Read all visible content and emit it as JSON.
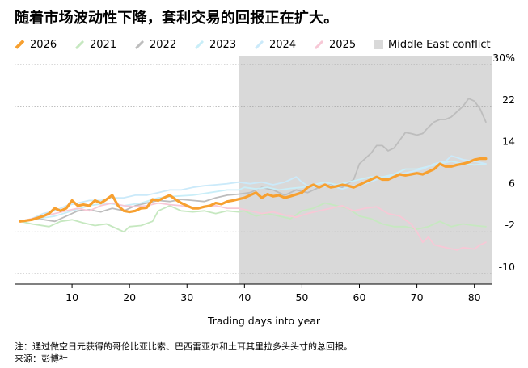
{
  "title": "随着市场波动性下降，套利交易的回报正在扩大。",
  "chart_data": {
    "type": "line",
    "xlabel": "Trading days into year",
    "x_ticks": [
      10,
      20,
      30,
      40,
      50,
      60,
      70,
      80
    ],
    "y_ticks": [
      30,
      22,
      14,
      6,
      -2,
      -10
    ],
    "y_tick_labels": [
      "30%",
      "22",
      "14",
      "6",
      "-2",
      "-10"
    ],
    "xlim": [
      0,
      83
    ],
    "ylim": [
      -12,
      30
    ],
    "grid": true,
    "legend_position": "top",
    "shaded_region": {
      "label": "Middle East conflict",
      "x_start": 39,
      "x_end": 83,
      "color": "#d9d9d9"
    },
    "series": [
      {
        "name": "2026",
        "color": "#f7a030",
        "highlight": true,
        "points": [
          [
            1,
            0
          ],
          [
            3,
            0.3
          ],
          [
            5,
            1
          ],
          [
            6,
            1.5
          ],
          [
            7,
            2.5
          ],
          [
            8,
            2
          ],
          [
            9,
            2.5
          ],
          [
            10,
            4
          ],
          [
            11,
            3
          ],
          [
            12,
            3.2
          ],
          [
            13,
            3
          ],
          [
            14,
            4
          ],
          [
            15,
            3.5
          ],
          [
            16,
            4.2
          ],
          [
            17,
            5
          ],
          [
            18,
            3
          ],
          [
            19,
            2
          ],
          [
            20,
            1.8
          ],
          [
            21,
            2
          ],
          [
            22,
            2.5
          ],
          [
            23,
            2.6
          ],
          [
            24,
            4.2
          ],
          [
            25,
            4
          ],
          [
            26,
            4.5
          ],
          [
            27,
            5
          ],
          [
            28,
            4.2
          ],
          [
            29,
            3.5
          ],
          [
            30,
            3
          ],
          [
            31,
            2.5
          ],
          [
            32,
            2.5
          ],
          [
            33,
            2.8
          ],
          [
            34,
            3
          ],
          [
            35,
            3.5
          ],
          [
            36,
            3.3
          ],
          [
            37,
            3.8
          ],
          [
            38,
            4
          ],
          [
            40,
            4.5
          ],
          [
            42,
            5.5
          ],
          [
            43,
            4.5
          ],
          [
            44,
            5.2
          ],
          [
            45,
            4.8
          ],
          [
            46,
            5
          ],
          [
            47,
            4.5
          ],
          [
            48,
            4.8
          ],
          [
            50,
            5.5
          ],
          [
            51,
            6.5
          ],
          [
            52,
            7
          ],
          [
            53,
            6.5
          ],
          [
            54,
            7
          ],
          [
            55,
            6.5
          ],
          [
            56,
            6.7
          ],
          [
            57,
            7
          ],
          [
            58,
            6.8
          ],
          [
            59,
            6.5
          ],
          [
            60,
            7
          ],
          [
            61,
            7.5
          ],
          [
            62,
            8
          ],
          [
            63,
            8.5
          ],
          [
            64,
            8
          ],
          [
            65,
            8
          ],
          [
            66,
            8.5
          ],
          [
            67,
            9
          ],
          [
            68,
            8.8
          ],
          [
            69,
            9
          ],
          [
            70,
            9.2
          ],
          [
            71,
            9
          ],
          [
            72,
            9.5
          ],
          [
            73,
            10
          ],
          [
            74,
            11
          ],
          [
            75,
            10.5
          ],
          [
            76,
            10.5
          ],
          [
            77,
            10.8
          ],
          [
            78,
            11
          ],
          [
            79,
            11.3
          ],
          [
            80,
            11.8
          ],
          [
            81,
            12
          ],
          [
            82,
            12
          ]
        ]
      },
      {
        "name": "2021",
        "color": "#c6e8c0",
        "highlight": false,
        "points": [
          [
            1,
            0
          ],
          [
            3,
            -0.5
          ],
          [
            6,
            -1
          ],
          [
            8,
            0
          ],
          [
            10,
            0.3
          ],
          [
            12,
            -0.3
          ],
          [
            14,
            -0.8
          ],
          [
            16,
            -0.5
          ],
          [
            18,
            -1.5
          ],
          [
            19,
            -2
          ],
          [
            20,
            -1
          ],
          [
            22,
            -0.8
          ],
          [
            24,
            0
          ],
          [
            25,
            2
          ],
          [
            27,
            3
          ],
          [
            29,
            2
          ],
          [
            31,
            1.8
          ],
          [
            33,
            2
          ],
          [
            35,
            1.5
          ],
          [
            37,
            2
          ],
          [
            39,
            1.8
          ],
          [
            40,
            2
          ],
          [
            42,
            1
          ],
          [
            44,
            1.5
          ],
          [
            46,
            1
          ],
          [
            48,
            0.5
          ],
          [
            50,
            2
          ],
          [
            52,
            2.5
          ],
          [
            54,
            3.5
          ],
          [
            56,
            3
          ],
          [
            58,
            2.5
          ],
          [
            60,
            1
          ],
          [
            62,
            0.5
          ],
          [
            64,
            -0.5
          ],
          [
            66,
            -1
          ],
          [
            68,
            -1
          ],
          [
            70,
            -1.5
          ],
          [
            72,
            -1
          ],
          [
            74,
            0
          ],
          [
            76,
            -1
          ],
          [
            78,
            -0.5
          ],
          [
            80,
            -0.8
          ],
          [
            82,
            -1
          ]
        ]
      },
      {
        "name": "2022",
        "color": "#bdbdbd",
        "highlight": false,
        "points": [
          [
            1,
            0
          ],
          [
            4,
            0.5
          ],
          [
            7,
            0
          ],
          [
            9,
            1
          ],
          [
            11,
            2
          ],
          [
            13,
            2.2
          ],
          [
            15,
            1.8
          ],
          [
            17,
            2.5
          ],
          [
            19,
            2
          ],
          [
            21,
            3
          ],
          [
            23,
            3.5
          ],
          [
            25,
            4
          ],
          [
            27,
            3.8
          ],
          [
            29,
            4.2
          ],
          [
            31,
            4
          ],
          [
            33,
            3.8
          ],
          [
            35,
            4.5
          ],
          [
            37,
            5
          ],
          [
            39,
            5.2
          ],
          [
            41,
            5.5
          ],
          [
            43,
            6.5
          ],
          [
            45,
            6
          ],
          [
            47,
            5
          ],
          [
            49,
            6
          ],
          [
            51,
            5.5
          ],
          [
            53,
            6.5
          ],
          [
            55,
            7
          ],
          [
            56,
            6.5
          ],
          [
            57,
            6.5
          ],
          [
            59,
            8
          ],
          [
            60,
            11
          ],
          [
            62,
            13
          ],
          [
            63,
            14.5
          ],
          [
            64,
            14.5
          ],
          [
            65,
            13.5
          ],
          [
            66,
            14
          ],
          [
            67,
            15.5
          ],
          [
            68,
            17
          ],
          [
            69,
            16.8
          ],
          [
            70,
            16.5
          ],
          [
            71,
            16.8
          ],
          [
            72,
            18
          ],
          [
            73,
            19
          ],
          [
            74,
            19.5
          ],
          [
            75,
            19.5
          ],
          [
            76,
            20
          ],
          [
            77,
            21
          ],
          [
            78,
            22
          ],
          [
            79,
            23.5
          ],
          [
            80,
            23
          ],
          [
            81,
            21.5
          ],
          [
            82,
            19
          ]
        ]
      },
      {
        "name": "2023",
        "color": "#c9eef8",
        "highlight": false,
        "points": [
          [
            1,
            0
          ],
          [
            4,
            0.5
          ],
          [
            7,
            1
          ],
          [
            10,
            2
          ],
          [
            13,
            3
          ],
          [
            16,
            3.5
          ],
          [
            19,
            3
          ],
          [
            22,
            3.5
          ],
          [
            25,
            4.5
          ],
          [
            28,
            4.8
          ],
          [
            31,
            5
          ],
          [
            34,
            5.5
          ],
          [
            37,
            6
          ],
          [
            39,
            6
          ],
          [
            40,
            6.5
          ],
          [
            42,
            6.2
          ],
          [
            44,
            6.5
          ],
          [
            46,
            6
          ],
          [
            48,
            6.3
          ],
          [
            50,
            6.5
          ],
          [
            52,
            7
          ],
          [
            54,
            7.5
          ],
          [
            56,
            7
          ],
          [
            58,
            7.5
          ],
          [
            60,
            8
          ],
          [
            62,
            8.5
          ],
          [
            64,
            8.5
          ],
          [
            66,
            9
          ],
          [
            68,
            10
          ],
          [
            70,
            10
          ],
          [
            72,
            10.5
          ],
          [
            74,
            11
          ],
          [
            76,
            11.5
          ],
          [
            78,
            11
          ],
          [
            80,
            10.8
          ],
          [
            82,
            11
          ]
        ]
      },
      {
        "name": "2024",
        "color": "#cbeafa",
        "highlight": false,
        "points": [
          [
            1,
            0
          ],
          [
            3,
            0.5
          ],
          [
            5,
            1.5
          ],
          [
            7,
            2
          ],
          [
            9,
            3
          ],
          [
            11,
            3.5
          ],
          [
            13,
            4
          ],
          [
            15,
            4
          ],
          [
            17,
            4.5
          ],
          [
            19,
            4.5
          ],
          [
            21,
            5
          ],
          [
            23,
            5
          ],
          [
            25,
            5.5
          ],
          [
            27,
            6
          ],
          [
            29,
            6
          ],
          [
            31,
            6.5
          ],
          [
            33,
            6.8
          ],
          [
            35,
            7
          ],
          [
            37,
            7.2
          ],
          [
            39,
            7.5
          ],
          [
            41,
            7.2
          ],
          [
            43,
            7.5
          ],
          [
            45,
            7
          ],
          [
            47,
            7.5
          ],
          [
            48,
            8
          ],
          [
            49,
            8.5
          ],
          [
            50,
            7.5
          ],
          [
            51,
            6.8
          ],
          [
            53,
            6.5
          ],
          [
            55,
            6.8
          ],
          [
            57,
            6.2
          ],
          [
            59,
            6.8
          ],
          [
            61,
            7.2
          ],
          [
            63,
            8
          ],
          [
            65,
            8.5
          ],
          [
            67,
            9
          ],
          [
            69,
            9.5
          ],
          [
            71,
            10
          ],
          [
            73,
            11
          ],
          [
            75,
            11.5
          ],
          [
            76,
            12.5
          ],
          [
            77,
            12.2
          ],
          [
            78,
            11.8
          ],
          [
            80,
            11.5
          ],
          [
            82,
            11
          ]
        ]
      },
      {
        "name": "2025",
        "color": "#f7c8d6",
        "highlight": false,
        "points": [
          [
            1,
            0
          ],
          [
            3,
            0.5
          ],
          [
            5,
            1
          ],
          [
            7,
            1.5
          ],
          [
            9,
            2
          ],
          [
            11,
            2.5
          ],
          [
            13,
            2
          ],
          [
            15,
            3
          ],
          [
            17,
            3.5
          ],
          [
            19,
            3
          ],
          [
            21,
            2.8
          ],
          [
            23,
            3
          ],
          [
            25,
            3.5
          ],
          [
            27,
            3.2
          ],
          [
            29,
            3
          ],
          [
            31,
            2.5
          ],
          [
            33,
            2.8
          ],
          [
            35,
            3
          ],
          [
            37,
            2.5
          ],
          [
            39,
            2.5
          ],
          [
            41,
            2
          ],
          [
            43,
            1.5
          ],
          [
            45,
            1.8
          ],
          [
            47,
            1.2
          ],
          [
            49,
            0.8
          ],
          [
            51,
            1.5
          ],
          [
            53,
            2
          ],
          [
            55,
            2.5
          ],
          [
            57,
            3
          ],
          [
            59,
            2
          ],
          [
            61,
            2.5
          ],
          [
            63,
            2.8
          ],
          [
            65,
            1.5
          ],
          [
            67,
            1
          ],
          [
            69,
            -0.5
          ],
          [
            70,
            -2
          ],
          [
            71,
            -4
          ],
          [
            72,
            -3
          ],
          [
            73,
            -4.5
          ],
          [
            75,
            -5
          ],
          [
            77,
            -5.5
          ],
          [
            78,
            -5
          ],
          [
            80,
            -5.3
          ],
          [
            81,
            -4.5
          ],
          [
            82,
            -4
          ]
        ]
      }
    ]
  },
  "legend": [
    {
      "label": "2026",
      "type": "line",
      "color": "#f7a030",
      "bold": true
    },
    {
      "label": "2021",
      "type": "line",
      "color": "#c6e8c0"
    },
    {
      "label": "2022",
      "type": "line",
      "color": "#bdbdbd"
    },
    {
      "label": "2023",
      "type": "line",
      "color": "#c9eef8"
    },
    {
      "label": "2024",
      "type": "line",
      "color": "#cbeafa"
    },
    {
      "label": "2025",
      "type": "line",
      "color": "#f7c8d6"
    },
    {
      "label": "Middle East conflict",
      "type": "box",
      "color": "#d9d9d9"
    }
  ],
  "notes": {
    "note": "注：通过做空日元获得的哥伦比亚比索、巴西雷亚尔和土耳其里拉多头头寸的总回报。",
    "source": "来源：彭博社"
  }
}
